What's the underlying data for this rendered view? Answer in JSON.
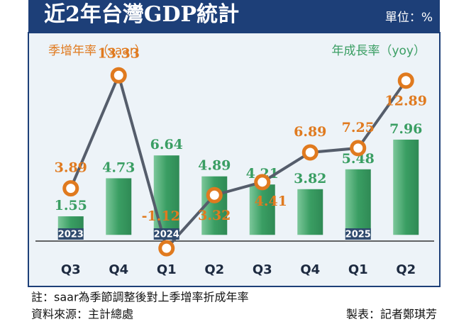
{
  "chart_data": {
    "type": "bar-line",
    "title": "近2年台灣GDP統計",
    "unit": "單位：%",
    "categories": [
      "Q3",
      "Q4",
      "Q1",
      "Q2",
      "Q3",
      "Q4",
      "Q1",
      "Q2"
    ],
    "years": [
      "2023",
      null,
      "2024",
      null,
      null,
      null,
      "2025",
      null
    ],
    "series": [
      {
        "name": "季增年率（saar）",
        "type": "line",
        "color": "#e07a1f",
        "values": [
          3.89,
          13.33,
          -1.12,
          3.32,
          4.41,
          6.89,
          7.25,
          12.89
        ]
      },
      {
        "name": "年成長率（yoy）",
        "type": "bar",
        "color": "#3a9e63",
        "values": [
          1.55,
          4.73,
          6.64,
          4.89,
          4.21,
          3.82,
          5.48,
          7.96
        ]
      }
    ],
    "ylim": [
      -2,
      14
    ],
    "note": "註：saar為季節調整後對上季增率折成年率",
    "source": "資料來源：主計總處",
    "credit": "製表：記者鄭琪芳"
  }
}
